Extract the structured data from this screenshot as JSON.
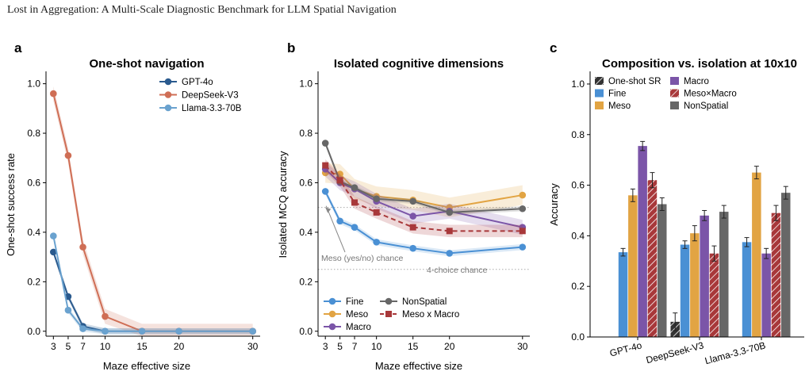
{
  "header": {
    "paper_title": "Lost in Aggregation: A Multi-Scale Diagnostic Benchmark for LLM Spatial Navigation"
  },
  "colors": {
    "gpt4o": "#2a5a8e",
    "deepseek": "#cf6e55",
    "llama": "#6aa2cf",
    "fine": "#4a90d4",
    "meso": "#e2a443",
    "macro": "#7b55a8",
    "mesomacro": "#a8383a",
    "nonspatial": "#676767",
    "oneshot": "#333333"
  },
  "chart_data": [
    {
      "panel": "a",
      "type": "line",
      "title": "One-shot navigation",
      "xlabel": "Maze effective size",
      "ylabel": "One-shot success rate",
      "x_ticks": [
        3,
        5,
        7,
        10,
        15,
        20,
        30
      ],
      "xlim": [
        2,
        31
      ],
      "ylim": [
        -0.02,
        1.05
      ],
      "y_ticks": [
        0.0,
        0.2,
        0.4,
        0.6,
        0.8,
        1.0
      ],
      "y_tick_labels": [
        "0.0",
        "0.2",
        "0.4",
        "0.6",
        "0.8",
        "1.0"
      ],
      "legend_position": "top-right",
      "series": [
        {
          "name": "GPT-4o",
          "color_key": "gpt4o",
          "x": [
            3,
            5,
            7,
            10,
            15,
            20,
            30
          ],
          "y": [
            0.32,
            0.14,
            0.02,
            0.0,
            0.0,
            0.0,
            0.0
          ],
          "band": 0.012
        },
        {
          "name": "DeepSeek-V3",
          "color_key": "deepseek",
          "x": [
            3,
            5,
            7,
            10,
            15,
            20,
            30
          ],
          "y": [
            0.96,
            0.71,
            0.34,
            0.06,
            0.0,
            0.0,
            0.0
          ],
          "band": 0.03
        },
        {
          "name": "Llama-3.3-70B",
          "color_key": "llama",
          "x": [
            3,
            5,
            7,
            10,
            15,
            20,
            30
          ],
          "y": [
            0.385,
            0.085,
            0.01,
            0.0,
            0.0,
            0.0,
            0.0
          ],
          "band": 0.012
        }
      ]
    },
    {
      "panel": "b",
      "type": "line",
      "title": "Isolated cognitive dimensions",
      "xlabel": "Maze effective size",
      "ylabel": "Isolated MCQ accuracy",
      "x_ticks": [
        3,
        5,
        7,
        10,
        15,
        20,
        30
      ],
      "xlim": [
        2,
        31
      ],
      "ylim": [
        -0.02,
        1.05
      ],
      "y_ticks": [
        0.0,
        0.2,
        0.4,
        0.6,
        0.8,
        1.0
      ],
      "y_tick_labels": [
        "0.0",
        "0.2",
        "0.4",
        "0.6",
        "0.8",
        "1.0"
      ],
      "legend_position": "bottom-left",
      "reference_lines": [
        {
          "y": 0.5,
          "label": "Meso (yes/no) chance"
        },
        {
          "y": 0.25,
          "label": "4-choice chance"
        }
      ],
      "series": [
        {
          "name": "Fine",
          "color_key": "fine",
          "marker": "circle",
          "dashed": false,
          "x": [
            3,
            5,
            7,
            10,
            15,
            20,
            30
          ],
          "y": [
            0.565,
            0.445,
            0.42,
            0.36,
            0.335,
            0.315,
            0.34
          ],
          "band": 0.012
        },
        {
          "name": "Meso",
          "color_key": "meso",
          "marker": "circle",
          "dashed": false,
          "x": [
            3,
            5,
            7,
            10,
            15,
            20,
            30
          ],
          "y": [
            0.64,
            0.635,
            0.575,
            0.545,
            0.53,
            0.5,
            0.55
          ],
          "band": 0.04
        },
        {
          "name": "Macro",
          "color_key": "macro",
          "marker": "circle",
          "dashed": false,
          "x": [
            3,
            5,
            7,
            10,
            15,
            20,
            30
          ],
          "y": [
            0.655,
            0.6,
            0.575,
            0.525,
            0.465,
            0.485,
            0.42
          ],
          "band": 0.03
        },
        {
          "name": "NonSpatial",
          "color_key": "nonspatial",
          "marker": "circle",
          "dashed": false,
          "x": [
            3,
            5,
            7,
            10,
            15,
            20,
            30
          ],
          "y": [
            0.76,
            0.605,
            0.58,
            0.535,
            0.525,
            0.48,
            0.495
          ],
          "band": 0.01
        },
        {
          "name": "Meso x Macro",
          "color_key": "mesomacro",
          "marker": "square",
          "dashed": true,
          "x": [
            3,
            5,
            7,
            10,
            15,
            20,
            30
          ],
          "y": [
            0.67,
            0.61,
            0.52,
            0.48,
            0.42,
            0.405,
            0.405
          ],
          "band": 0.025
        }
      ]
    },
    {
      "panel": "c",
      "type": "bar",
      "title": "Composition vs. isolation at 10x10",
      "xlabel": "",
      "ylabel": "Accuracy",
      "categories": [
        "GPT-4o",
        "DeepSeek-V3",
        "Llama-3.3-70B"
      ],
      "ylim": [
        0,
        1.05
      ],
      "y_ticks": [
        0.0,
        0.2,
        0.4,
        0.6,
        0.8,
        1.0
      ],
      "y_tick_labels": [
        "0.0",
        "0.2",
        "0.4",
        "0.6",
        "0.8",
        "1.0"
      ],
      "legend_position": "top-left",
      "series": [
        {
          "name": "One-shot SR",
          "color_key": "oneshot",
          "hatched": true,
          "values": [
            0.0,
            0.06,
            0.0
          ],
          "errors": [
            0.0,
            0.035,
            0.0
          ]
        },
        {
          "name": "Fine",
          "color_key": "fine",
          "hatched": false,
          "values": [
            0.335,
            0.365,
            0.375
          ],
          "errors": [
            0.015,
            0.015,
            0.018
          ]
        },
        {
          "name": "Meso",
          "color_key": "meso",
          "hatched": false,
          "values": [
            0.56,
            0.41,
            0.65
          ],
          "errors": [
            0.025,
            0.03,
            0.025
          ]
        },
        {
          "name": "Macro",
          "color_key": "macro",
          "hatched": false,
          "values": [
            0.755,
            0.48,
            0.33
          ],
          "errors": [
            0.018,
            0.02,
            0.02
          ]
        },
        {
          "name": "Meso×Macro",
          "color_key": "mesomacro",
          "hatched": true,
          "values": [
            0.62,
            0.33,
            0.49
          ],
          "errors": [
            0.03,
            0.03,
            0.03
          ]
        },
        {
          "name": "NonSpatial",
          "color_key": "nonspatial",
          "hatched": false,
          "values": [
            0.525,
            0.495,
            0.57
          ],
          "errors": [
            0.025,
            0.025,
            0.025
          ]
        }
      ]
    }
  ]
}
